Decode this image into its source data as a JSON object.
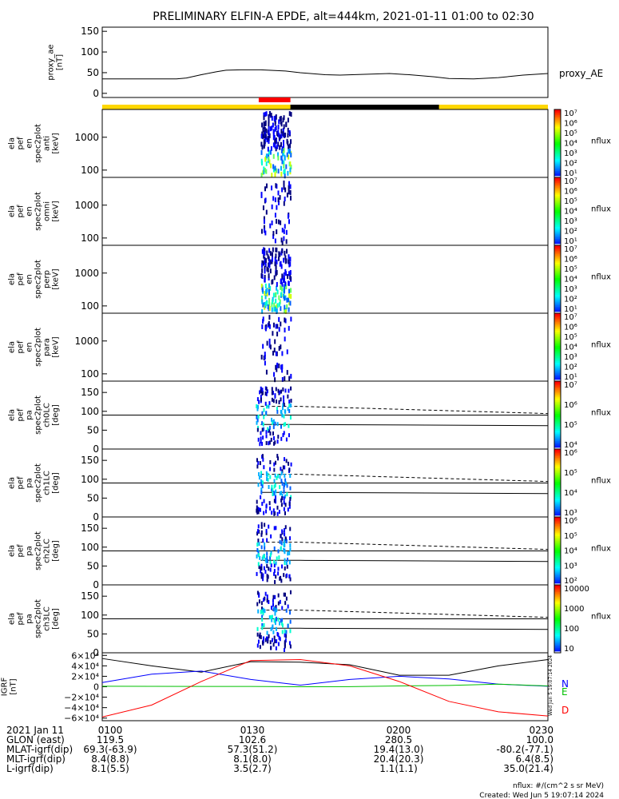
{
  "title": "PRELIMINARY ELFIN-A EPDE, alt=444km, 2021-01-11 01:00 to 02:30",
  "colors": {
    "sunlight_bar": "#ffd700",
    "science_bar": "#ff0000",
    "shadow_bar": "#000000",
    "grf_x": "#000000",
    "grf_y": "#0000ff",
    "grf_z": "#00c000",
    "grf_d": "#ff0000"
  },
  "chart_data": [
    {
      "type": "line",
      "panel": "proxy_ae",
      "ylabel": [
        "proxy_ae",
        "[nT]"
      ],
      "yticks": [
        "150",
        "100",
        "50",
        "0"
      ],
      "ylim": [
        -10,
        160
      ],
      "legend": "proxy_AE",
      "x_min": [
        0,
        5,
        10,
        15,
        17,
        20,
        23,
        25,
        28,
        32,
        37,
        40,
        45,
        48,
        53,
        58,
        62,
        67,
        70,
        75,
        80,
        85,
        90
      ],
      "y": [
        35,
        35,
        35,
        35,
        37,
        45,
        52,
        56,
        57,
        57,
        54,
        50,
        45,
        44,
        46,
        48,
        45,
        40,
        36,
        35,
        38,
        44,
        48
      ]
    },
    {
      "type": "heatmap",
      "panel": "spectrogram",
      "ylabels": [
        [
          "ela",
          "pef",
          "en",
          "spec2plot",
          "anti",
          "[keV]"
        ],
        [
          "ela",
          "pef",
          "en",
          "spec2plot",
          "omni",
          "[keV]"
        ],
        [
          "ela",
          "pef",
          "en",
          "spec2plot",
          "perp",
          "[keV]"
        ],
        [
          "ela",
          "pef",
          "en",
          "spec2plot",
          "para",
          "[keV]"
        ]
      ],
      "yticks": [
        "1000",
        "100"
      ],
      "ylim_keV": [
        60,
        7000
      ],
      "colorbar": {
        "label": "nflux",
        "ticks": [
          "10⁷",
          "10⁶",
          "10⁵",
          "10⁴",
          "10³",
          "10²",
          "10¹"
        ]
      },
      "active_interval_min": [
        32,
        38
      ]
    },
    {
      "type": "heatmap",
      "panel": "pitch_angle",
      "ylabels": [
        [
          "ela",
          "pef",
          "pa",
          "spec2plot",
          "ch0LC",
          "[deg]"
        ],
        [
          "ela",
          "pef",
          "pa",
          "spec2plot",
          "ch1LC",
          "[deg]"
        ],
        [
          "ela",
          "pef",
          "pa",
          "spec2plot",
          "ch2LC",
          "[deg]"
        ],
        [
          "ela",
          "pef",
          "pa",
          "spec2plot",
          "ch3LC",
          "[deg]"
        ]
      ],
      "yticks": [
        "150",
        "100",
        "50",
        "0"
      ],
      "ylim_deg": [
        0,
        180
      ],
      "colorbars": [
        {
          "label": "nflux",
          "ticks": [
            "10⁷",
            "10⁶",
            "10⁵",
            "10⁴"
          ]
        },
        {
          "label": "nflux",
          "ticks": [
            "10⁶",
            "10⁵",
            "10⁴",
            "10³"
          ]
        },
        {
          "label": "nflux",
          "ticks": [
            "10⁶",
            "10⁵",
            "10⁴",
            "10³",
            "10²"
          ]
        },
        {
          "label": "nflux",
          "ticks": [
            "10000",
            "1000",
            "100",
            "10"
          ]
        }
      ],
      "active_interval_min": [
        31,
        38
      ],
      "ninety_deg": 90,
      "loss_cone_x_min": [
        32,
        40,
        90
      ],
      "loss_cone_deg": [
        65,
        65,
        62
      ],
      "anti_loss_cone_deg": [
        113,
        113,
        94
      ]
    },
    {
      "type": "line",
      "panel": "igrf",
      "ylabel": [
        "IGRF",
        "[nT]"
      ],
      "yticks": [
        "6×10⁴",
        "4×10⁴",
        "2×10⁴",
        "0",
        "−2×10⁴",
        "−4×10⁴",
        "−6×10⁴"
      ],
      "ylim": [
        -65000,
        65000
      ],
      "legend": [
        "N",
        "E",
        "D"
      ],
      "x_min": [
        0,
        10,
        20,
        30,
        40,
        50,
        60,
        70,
        80,
        90
      ],
      "series": [
        {
          "name": "N",
          "values": [
            54000,
            40000,
            28000,
            48000,
            47000,
            42000,
            22000,
            22000,
            40000,
            52000
          ]
        },
        {
          "name": "E",
          "values": [
            8000,
            24000,
            30000,
            14000,
            3000,
            14000,
            20000,
            15000,
            5000,
            1000
          ]
        },
        {
          "name": "D",
          "values": [
            1000,
            800,
            500,
            500,
            0,
            200,
            1500,
            2500,
            5000,
            1500
          ]
        },
        {
          "name": "",
          "values": [
            -58000,
            -35000,
            10000,
            50000,
            52000,
            40000,
            10000,
            -28000,
            -48000,
            -56000
          ]
        }
      ]
    }
  ],
  "x_labels": {
    "rows": [
      "2021 Jan 11",
      "GLON (east)",
      "MLAT-igrf(dip)",
      "MLT-igrf(dip)",
      "L-igrf(dip)"
    ],
    "columns": [
      [
        "0100",
        "119.5",
        "69.3(-63.9)",
        "8.4(8.8)",
        "8.1(5.5)"
      ],
      [
        "0130",
        "102.6",
        "57.3(51.2)",
        "8.1(8.0)",
        "3.5(2.7)"
      ],
      [
        "0200",
        "280.5",
        "19.4(13.0)",
        "20.4(20.3)",
        "1.1(1.1)"
      ],
      [
        "0230",
        "100.0",
        "-80.2(-77.1)",
        "6.4(8.5)",
        "35.0(21.4)"
      ]
    ]
  },
  "footer": {
    "units": "nflux: #/(cm^2 s sr MeV)",
    "created": "Created: Wed Jun  5 19:07:14 2024",
    "vertical_stamp": "Wed Jun  5 19:07:14 2024"
  }
}
